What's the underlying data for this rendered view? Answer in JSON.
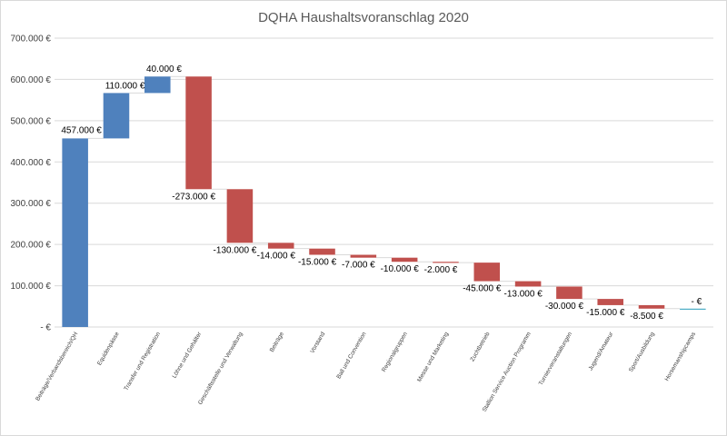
{
  "chart_data": {
    "type": "bar",
    "subtype": "waterfall",
    "title": "DQHA Haushaltsvoranschlag 2020",
    "ylim": [
      0,
      700000
    ],
    "yticks": [
      0,
      100000,
      200000,
      300000,
      400000,
      500000,
      600000,
      700000
    ],
    "ytick_labels": [
      "-   €",
      "100.000 €",
      "200.000 €",
      "300.000 €",
      "400.000 €",
      "500.000 €",
      "600.000 €",
      "700.000 €"
    ],
    "grid": true,
    "colors": {
      "increase": "#4f81bd",
      "decrease": "#c0504d",
      "total": "#4bacc6"
    },
    "categories": [
      "Beiträge/Verbandsbereich/QH",
      "Equidenpässe",
      "Transfer und Registration",
      "Löhne und Gehälter",
      "Geschäftsstelle und Verwaltung",
      "Beiträge",
      "Vorstand",
      "Ball und Convention",
      "Regionalgruppen",
      "Messe und Marketing",
      "Zuchtbetrieb",
      "Stallion Service Auction Programm",
      "Turnierveranstaltungen",
      "Jugend/Amateur",
      "Sport/Ausbildung",
      "Horsemanshipcamps"
    ],
    "values": [
      457000,
      110000,
      40000,
      -273000,
      -130000,
      -14000,
      -15000,
      -7000,
      -10000,
      -2000,
      -45000,
      -13000,
      -30000,
      -15000,
      -8500,
      0
    ],
    "data_labels": [
      "457.000 €",
      "110.000 €",
      "40.000 €",
      "-273.000 €",
      "-130.000 €",
      "-14.000 €",
      "-15.000 €",
      "-7.000 €",
      "-10.000 €",
      "-2.000 €",
      "-45.000 €",
      "-13.000 €",
      "-30.000 €",
      "-15.000 €",
      "-8.500 €",
      "-   €"
    ]
  }
}
